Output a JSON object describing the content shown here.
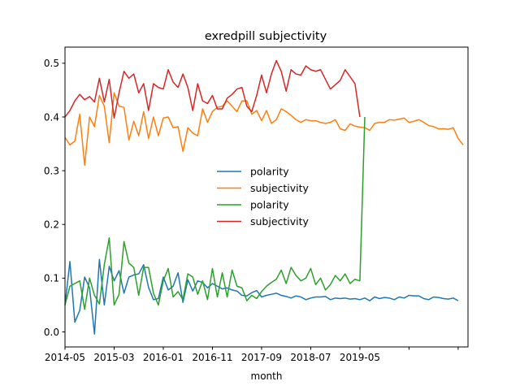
{
  "chart_data": {
    "type": "line",
    "title": "exredpill subjectivity",
    "xlabel": "month",
    "ylabel": "",
    "x_tick_labels": [
      "2014-05",
      "2015-03",
      "2016-01",
      "2016-11",
      "2017-09",
      "2018-07",
      "2019-05",
      "",
      ""
    ],
    "y_ticks": [
      "0.0",
      "0.1",
      "0.2",
      "0.3",
      "0.4",
      "0.5"
    ],
    "ylim": [
      -0.028,
      0.53
    ],
    "legend_position": "center",
    "grid": false,
    "series": [
      {
        "name": "polarity",
        "color": "#1f77b4",
        "values": [
          0.05,
          0.131,
          0.018,
          0.04,
          0.102,
          0.082,
          -0.004,
          0.135,
          0.05,
          0.122,
          0.095,
          0.114,
          0.072,
          0.102,
          0.106,
          0.108,
          0.125,
          0.083,
          0.06,
          0.062,
          0.102,
          0.078,
          0.085,
          0.11,
          0.055,
          0.097,
          0.076,
          0.095,
          0.092,
          0.082,
          0.09,
          0.085,
          0.08,
          0.082,
          0.078,
          0.076,
          0.068,
          0.067,
          0.073,
          0.077,
          0.065,
          0.068,
          0.07,
          0.072,
          0.068,
          0.066,
          0.063,
          0.067,
          0.065,
          0.06,
          0.063,
          0.065,
          0.065,
          0.066,
          0.06,
          0.063,
          0.062,
          0.063,
          0.061,
          0.062,
          0.06,
          0.063,
          0.058,
          0.065,
          0.062,
          0.064,
          0.063,
          0.06,
          0.065,
          0.063,
          0.068,
          0.067,
          0.067,
          0.062,
          0.06,
          0.065,
          0.064,
          0.062,
          0.061,
          0.063,
          0.058
        ]
      },
      {
        "name": "subjectivity",
        "color": "#ff7f0e",
        "values": [
          0.362,
          0.348,
          0.355,
          0.405,
          0.31,
          0.4,
          0.382,
          0.44,
          0.42,
          0.352,
          0.445,
          0.42,
          0.418,
          0.357,
          0.392,
          0.365,
          0.41,
          0.36,
          0.4,
          0.365,
          0.398,
          0.4,
          0.38,
          0.382,
          0.336,
          0.38,
          0.37,
          0.365,
          0.415,
          0.39,
          0.41,
          0.418,
          0.42,
          0.43,
          0.42,
          0.41,
          0.43,
          0.43,
          0.405,
          0.412,
          0.393,
          0.412,
          0.388,
          0.395,
          0.415,
          0.41,
          0.403,
          0.395,
          0.39,
          0.395,
          0.393,
          0.393,
          0.39,
          0.388,
          0.39,
          0.395,
          0.378,
          0.375,
          0.387,
          0.383,
          0.381,
          0.38,
          0.375,
          0.388,
          0.39,
          0.39,
          0.395,
          0.394,
          0.396,
          0.398,
          0.39,
          0.392,
          0.395,
          0.39,
          0.384,
          0.382,
          0.378,
          0.378,
          0.377,
          0.38,
          0.36,
          0.348
        ]
      },
      {
        "name": "polarity",
        "color": "#2ca02c",
        "values": [
          0.05,
          0.085,
          0.09,
          0.095,
          0.042,
          0.1,
          0.068,
          0.052,
          0.125,
          0.175,
          0.05,
          0.07,
          0.168,
          0.128,
          0.12,
          0.068,
          0.12,
          0.12,
          0.072,
          0.05,
          0.095,
          0.118,
          0.065,
          0.075,
          0.06,
          0.108,
          0.102,
          0.07,
          0.095,
          0.06,
          0.118,
          0.065,
          0.11,
          0.065,
          0.115,
          0.085,
          0.082,
          0.058,
          0.068,
          0.062,
          0.075,
          0.085,
          0.092,
          0.098,
          0.115,
          0.09,
          0.12,
          0.105,
          0.095,
          0.1,
          0.118,
          0.088,
          0.1,
          0.078,
          0.088,
          0.105,
          0.095,
          0.108,
          0.09,
          0.098,
          0.095,
          0.4
        ]
      },
      {
        "name": "subjectivity",
        "color": "#d62728",
        "values": [
          0.4,
          0.412,
          0.43,
          0.442,
          0.432,
          0.438,
          0.428,
          0.472,
          0.428,
          0.47,
          0.398,
          0.445,
          0.485,
          0.472,
          0.48,
          0.445,
          0.462,
          0.412,
          0.462,
          0.455,
          0.452,
          0.488,
          0.465,
          0.455,
          0.48,
          0.455,
          0.412,
          0.462,
          0.43,
          0.425,
          0.44,
          0.415,
          0.415,
          0.435,
          0.442,
          0.452,
          0.455,
          0.42,
          0.41,
          0.44,
          0.478,
          0.445,
          0.48,
          0.505,
          0.485,
          0.448,
          0.488,
          0.48,
          0.478,
          0.495,
          0.488,
          0.485,
          0.488,
          0.47,
          0.452,
          0.46,
          0.468,
          0.488,
          0.475,
          0.462,
          0.4
        ]
      }
    ]
  }
}
